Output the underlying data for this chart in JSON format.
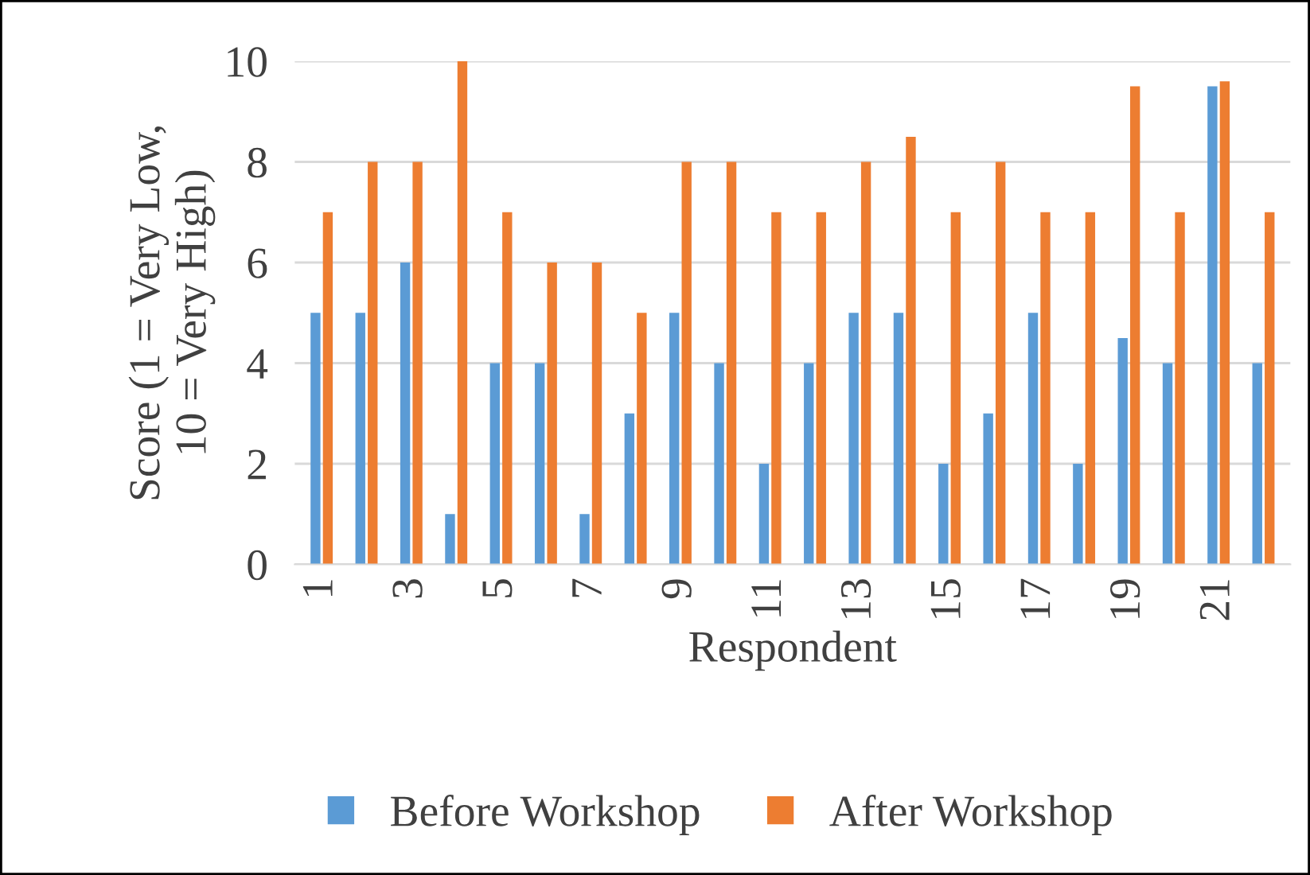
{
  "chart_data": {
    "type": "bar",
    "xlabel": "Respondent",
    "ylabel": "Score (1 = Very Low,\n10 = Very High)",
    "categories": [
      "1",
      null,
      "3",
      null,
      "5",
      null,
      "7",
      null,
      "9",
      null,
      "11",
      null,
      "13",
      null,
      "15",
      null,
      "17",
      null,
      "19",
      null,
      "21",
      null
    ],
    "series": [
      {
        "name": "Before Workshop",
        "color": "#5b9bd5",
        "values": [
          5,
          5,
          6,
          1,
          4,
          4,
          1,
          3,
          5,
          4,
          2,
          4,
          5,
          5,
          2,
          3,
          5,
          2,
          4.5,
          4,
          9.5,
          4
        ]
      },
      {
        "name": "After Workshop",
        "color": "#ed7d31",
        "values": [
          7,
          8,
          8,
          10,
          7,
          6,
          6,
          5,
          8,
          8,
          7,
          7,
          8,
          8.5,
          7,
          8,
          7,
          7,
          9.5,
          7,
          9.6,
          7
        ]
      }
    ],
    "ylim": [
      0,
      10
    ],
    "yticks": [
      0,
      2,
      4,
      6,
      8,
      10
    ],
    "grid": "y",
    "legend": "bottom"
  }
}
